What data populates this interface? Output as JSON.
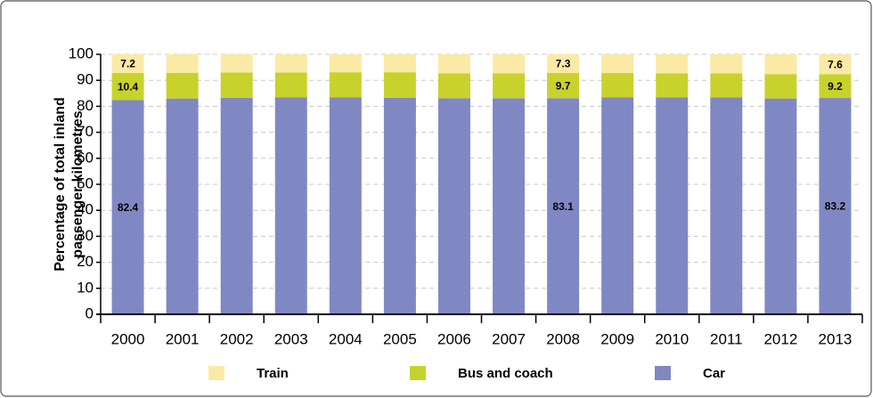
{
  "chart_data": {
    "type": "stacked_bar",
    "y_label": [
      "Percentage of total inland",
      "passenger-kilometres"
    ],
    "categories": [
      "2000",
      "2001",
      "2002",
      "2003",
      "2004",
      "2005",
      "2006",
      "2007",
      "2008",
      "2009",
      "2010",
      "2011",
      "2012",
      "2013"
    ],
    "series": [
      {
        "name": "Car",
        "color": "#8088c4",
        "values": [
          82.4,
          83.0,
          83.3,
          83.5,
          83.5,
          83.3,
          83.1,
          83.1,
          83.1,
          83.5,
          83.4,
          83.4,
          83.0,
          83.2
        ],
        "value_labels": [
          "82.4",
          null,
          null,
          null,
          null,
          null,
          null,
          null,
          "83.1",
          null,
          null,
          null,
          null,
          "83.2"
        ]
      },
      {
        "name": "Bus and coach",
        "color": "#c8d22c",
        "values": [
          10.4,
          9.9,
          9.7,
          9.5,
          9.6,
          9.8,
          9.6,
          9.6,
          9.7,
          9.3,
          9.3,
          9.3,
          9.4,
          9.2
        ],
        "value_labels": [
          "10.4",
          null,
          null,
          null,
          null,
          null,
          null,
          null,
          "9.7",
          null,
          null,
          null,
          null,
          "9.2"
        ]
      },
      {
        "name": "Train",
        "color": "#fbeaa5",
        "values": [
          7.2,
          7.1,
          7.0,
          7.0,
          6.9,
          6.9,
          7.3,
          7.3,
          7.3,
          7.2,
          7.3,
          7.3,
          7.6,
          7.6
        ],
        "value_labels": [
          "7.2",
          null,
          null,
          null,
          null,
          null,
          null,
          null,
          "7.3",
          null,
          null,
          null,
          null,
          "7.6"
        ]
      }
    ],
    "legend_order": [
      2,
      1,
      0
    ],
    "ylim": [
      0,
      100
    ],
    "yticks": [
      0,
      10,
      20,
      30,
      40,
      50,
      60,
      70,
      80,
      90,
      100
    ],
    "grid": true
  }
}
